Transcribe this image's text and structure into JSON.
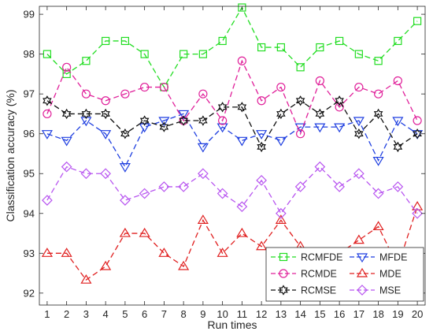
{
  "chart_data": {
    "type": "line",
    "xlabel": "Run times",
    "ylabel": "Classification accuracy (%)",
    "xlim": [
      0.6,
      20.4
    ],
    "ylim": [
      91.7,
      99.2
    ],
    "xticks": [
      1,
      2,
      3,
      4,
      5,
      6,
      7,
      8,
      9,
      10,
      11,
      12,
      13,
      14,
      15,
      16,
      17,
      18,
      19,
      20
    ],
    "yticks": [
      92,
      93,
      94,
      95,
      96,
      97,
      98,
      99
    ],
    "grid": false,
    "legend_position": "bottom-right",
    "x": [
      1,
      2,
      3,
      4,
      5,
      6,
      7,
      8,
      9,
      10,
      11,
      12,
      13,
      14,
      15,
      16,
      17,
      18,
      19,
      20
    ],
    "series": [
      {
        "name": "RCMFDE",
        "color": "#22dd22",
        "marker": "square",
        "values": [
          98.0,
          97.5,
          97.83,
          98.33,
          98.33,
          98.0,
          97.17,
          98.0,
          98.0,
          98.33,
          99.17,
          98.17,
          98.17,
          97.67,
          98.17,
          98.33,
          98.0,
          97.83,
          98.33,
          98.83
        ]
      },
      {
        "name": "MFDE",
        "color": "#1f3fe0",
        "marker": "triangle-down",
        "values": [
          96.0,
          95.83,
          96.33,
          96.0,
          95.17,
          96.17,
          96.33,
          96.5,
          95.67,
          96.17,
          95.83,
          96.0,
          95.83,
          96.17,
          96.17,
          96.17,
          96.33,
          95.33,
          96.33,
          96.0
        ]
      },
      {
        "name": "RCMDE",
        "color": "#e0209a",
        "marker": "circle",
        "values": [
          96.5,
          97.67,
          97.0,
          96.83,
          97.0,
          97.17,
          97.17,
          96.33,
          97.0,
          96.33,
          97.83,
          96.83,
          97.17,
          96.0,
          97.33,
          96.67,
          97.17,
          97.0,
          97.33,
          96.33
        ]
      },
      {
        "name": "MDE",
        "color": "#e02020",
        "marker": "triangle-up",
        "values": [
          93.0,
          93.0,
          92.33,
          92.67,
          93.5,
          93.5,
          93.0,
          92.67,
          93.83,
          93.0,
          93.5,
          93.17,
          93.83,
          93.17,
          92.67,
          93.0,
          93.33,
          93.67,
          92.67,
          94.17
        ]
      },
      {
        "name": "RCMSE",
        "color": "#111111",
        "marker": "hexagram",
        "values": [
          96.83,
          96.5,
          96.5,
          96.5,
          96.0,
          96.33,
          96.17,
          96.33,
          96.33,
          96.67,
          96.67,
          95.67,
          96.5,
          96.83,
          96.5,
          96.83,
          96.0,
          96.5,
          95.67,
          96.0
        ]
      },
      {
        "name": "MSE",
        "color": "#b855f0",
        "marker": "diamond",
        "values": [
          94.33,
          95.17,
          95.0,
          95.0,
          94.33,
          94.5,
          94.67,
          94.67,
          95.0,
          94.5,
          94.17,
          94.83,
          94.0,
          94.67,
          95.17,
          94.67,
          95.0,
          94.5,
          94.67,
          94.0
        ]
      }
    ]
  }
}
